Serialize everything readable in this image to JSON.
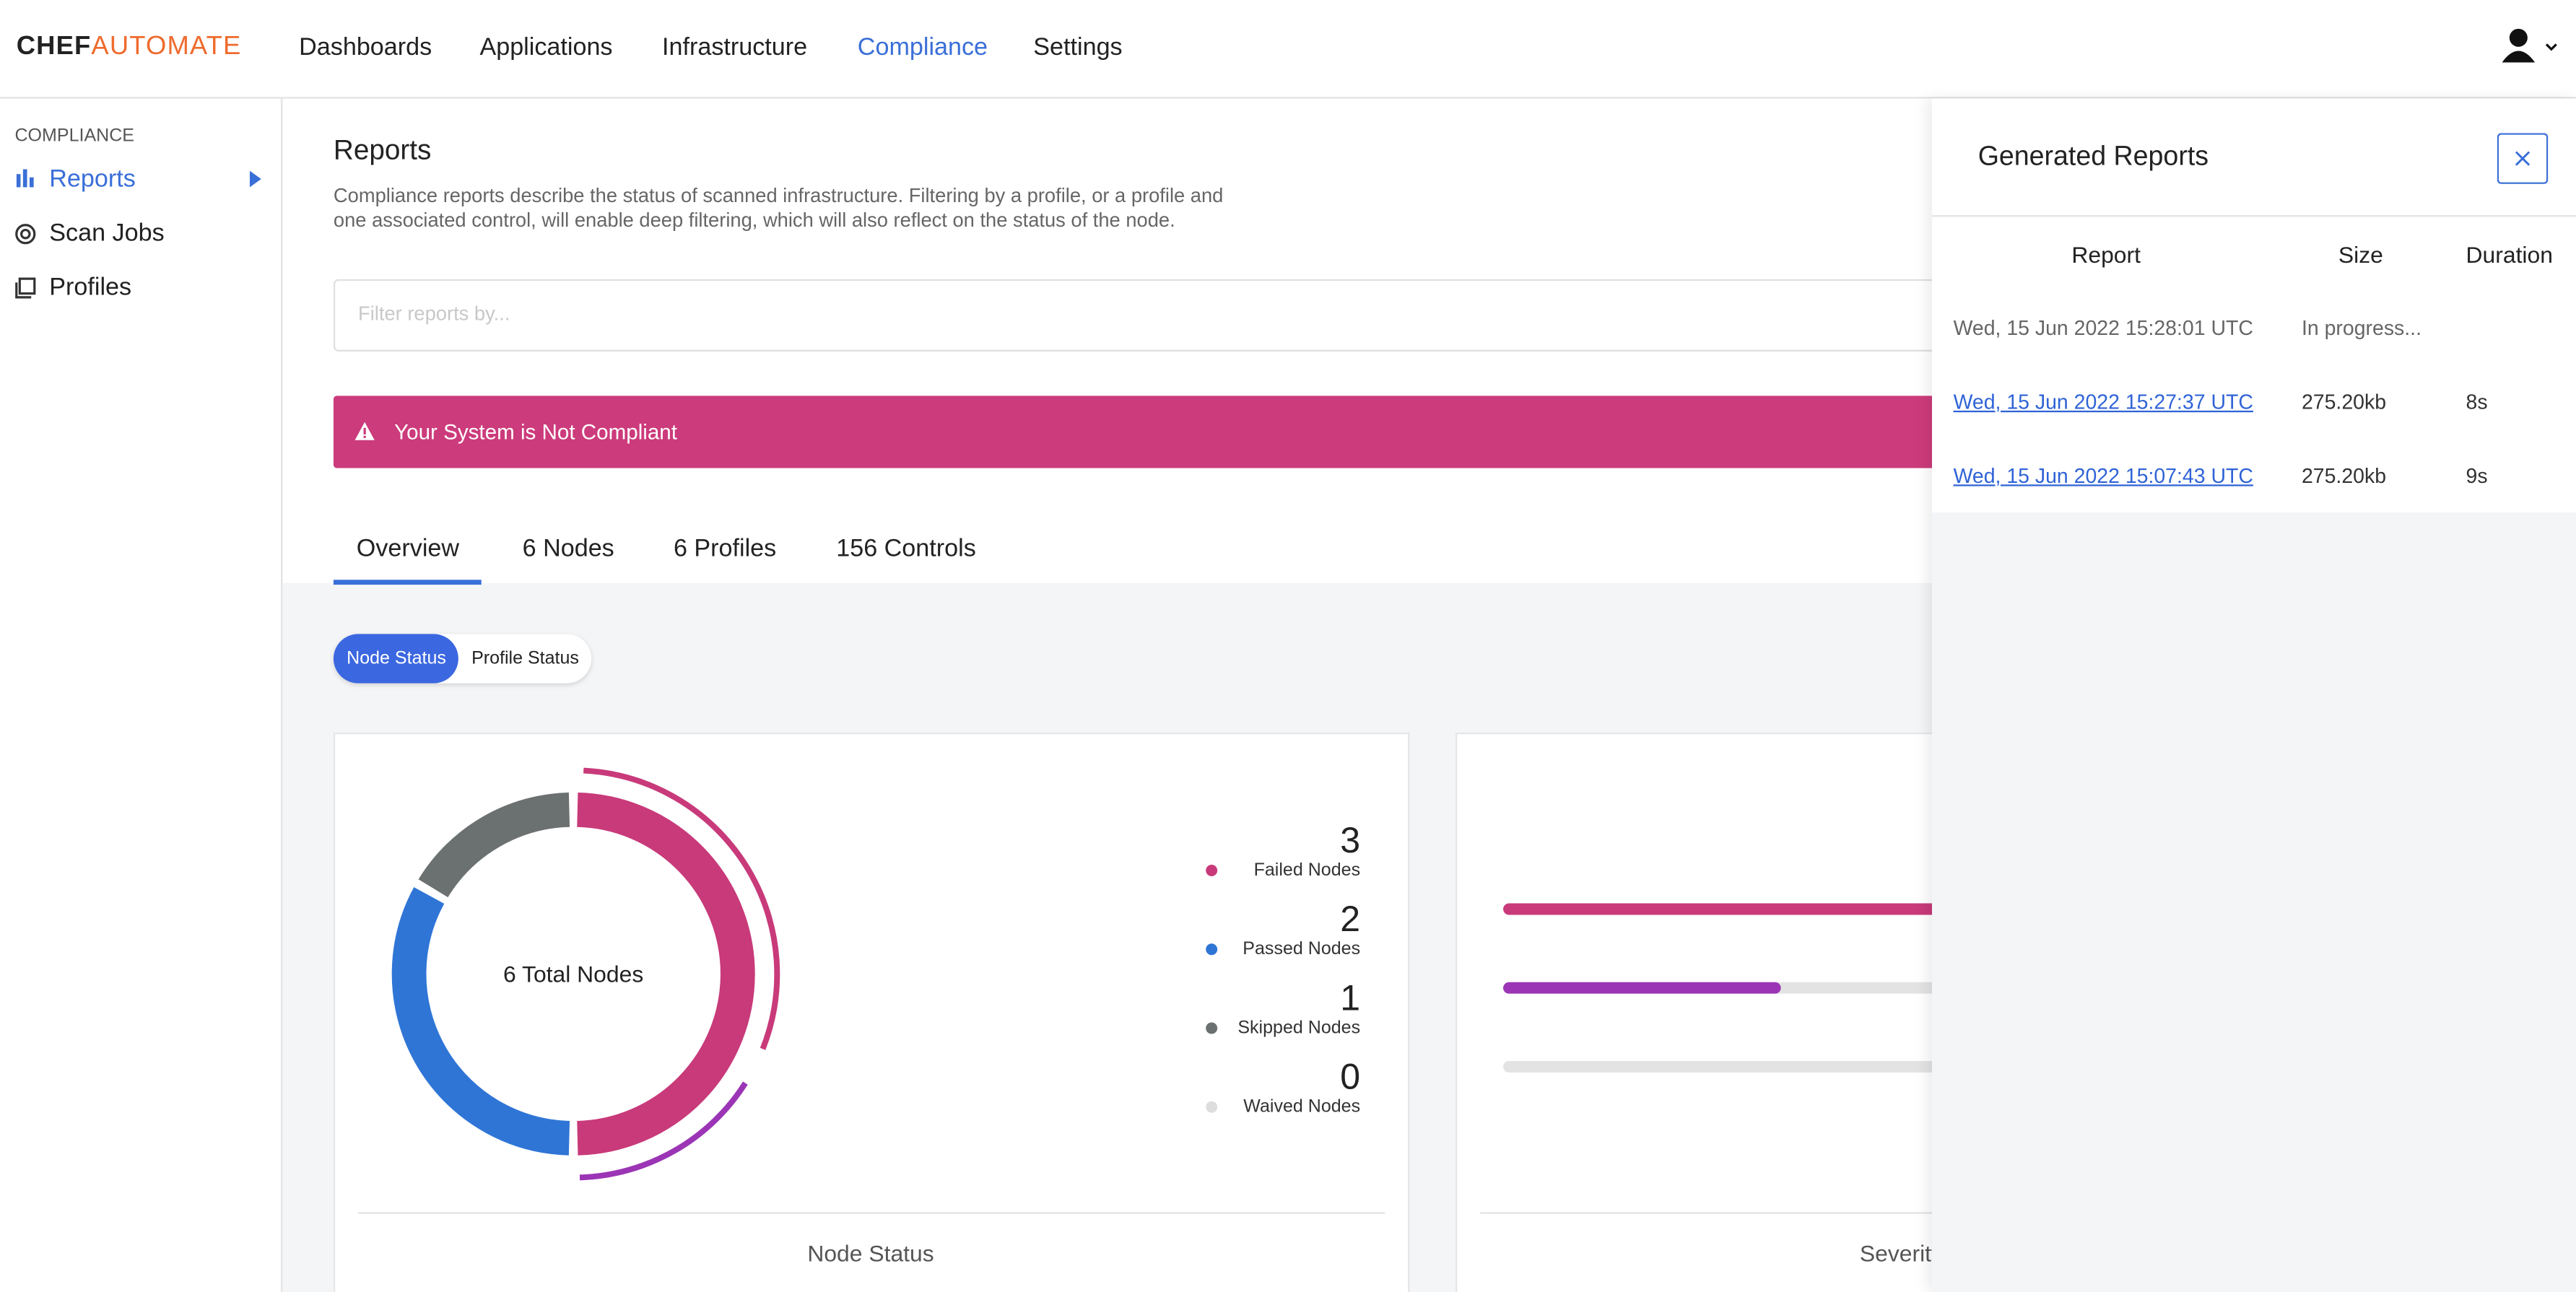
{
  "nav": {
    "brand": [
      "CHEF",
      "AUTOMATE"
    ],
    "items": [
      "Dashboards",
      "Applications",
      "Infrastructure",
      "Compliance",
      "Settings"
    ]
  },
  "sidebar": {
    "heading": "COMPLIANCE",
    "items": [
      "Reports",
      "Scan Jobs",
      "Profiles"
    ]
  },
  "header": {
    "title": "Reports",
    "description": "Compliance reports describe the status of scanned infrastructure. Filtering by a profile, or a profile and one associated control, will enable deep filtering, which will also reflect on the status of the node."
  },
  "filter": {
    "placeholder": "Filter reports by..."
  },
  "alert": "Your System is Not Compliant",
  "tabs": [
    "Overview",
    "6 Nodes",
    "6 Profiles",
    "156 Controls"
  ],
  "toggle": [
    "Node Status",
    "Profile Status"
  ],
  "node_status": {
    "center_label": "6 Total Nodes",
    "footer": "Node Status",
    "legend": [
      {
        "value": 3,
        "label": "Failed Nodes",
        "color": "#c83a7a"
      },
      {
        "value": 2,
        "label": "Passed Nodes",
        "color": "#2f75d6"
      },
      {
        "value": 1,
        "label": "Skipped Nodes",
        "color": "#6b7070"
      },
      {
        "value": 0,
        "label": "Waived Nodes",
        "color": "#dddddd"
      }
    ]
  },
  "severity": {
    "footer": "Severity"
  },
  "panel": {
    "title": "Generated Reports",
    "columns": [
      "Report",
      "Size",
      "Duration"
    ],
    "rows": [
      [
        "Wed, 15 Jun 2022 15:28:01 UTC",
        "In progress..."
      ],
      [
        "Wed, 15 Jun 2022 15:27:37 UTC",
        "275.20kb",
        "8s"
      ],
      [
        "Wed, 15 Jun 2022 15:07:43 UTC",
        "275.20kb",
        "9s"
      ]
    ]
  }
}
